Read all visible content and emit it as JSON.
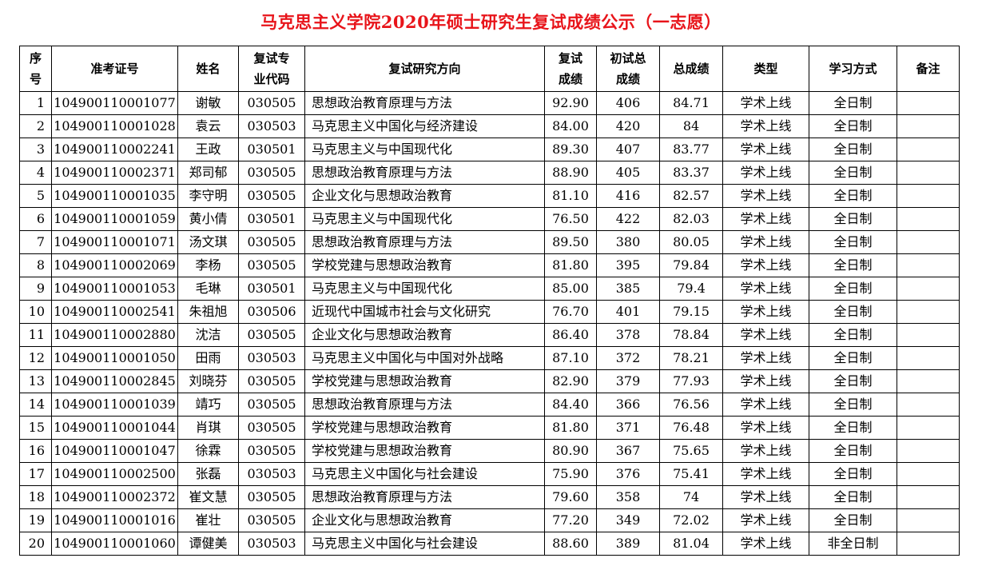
{
  "title": "马克思主义学院2020年硕士研究生复试成绩公示（一志愿）",
  "colors": {
    "title": "#e8141a"
  },
  "headers": [
    "序号",
    "准考证号",
    "姓名",
    "复试专业代码",
    "复试研究方向",
    "复试成绩",
    "初试总成绩",
    "总成绩",
    "类型",
    "学习方式",
    "备注"
  ],
  "rows": [
    [
      "1",
      "104900110001077",
      "谢敏",
      "030505",
      "思想政治教育原理与方法",
      "92.90",
      "406",
      "84.71",
      "学术上线",
      "全日制",
      ""
    ],
    [
      "2",
      "104900110001028",
      "袁云",
      "030503",
      "马克思主义中国化与经济建设",
      "84.00",
      "420",
      "84",
      "学术上线",
      "全日制",
      ""
    ],
    [
      "3",
      "104900110002241",
      "王政",
      "030501",
      "马克思主义与中国现代化",
      "89.30",
      "407",
      "83.77",
      "学术上线",
      "全日制",
      ""
    ],
    [
      "4",
      "104900110002371",
      "郑司郁",
      "030505",
      "思想政治教育原理与方法",
      "88.90",
      "405",
      "83.37",
      "学术上线",
      "全日制",
      ""
    ],
    [
      "5",
      "104900110001035",
      "李守明",
      "030505",
      "企业文化与思想政治教育",
      "81.10",
      "416",
      "82.57",
      "学术上线",
      "全日制",
      ""
    ],
    [
      "6",
      "104900110001059",
      "黄小倩",
      "030501",
      "马克思主义与中国现代化",
      "76.50",
      "422",
      "82.03",
      "学术上线",
      "全日制",
      ""
    ],
    [
      "7",
      "104900110001071",
      "汤文琪",
      "030505",
      "思想政治教育原理与方法",
      "89.50",
      "380",
      "80.05",
      "学术上线",
      "全日制",
      ""
    ],
    [
      "8",
      "104900110002069",
      "李杨",
      "030505",
      "学校党建与思想政治教育",
      "81.80",
      "395",
      "79.84",
      "学术上线",
      "全日制",
      ""
    ],
    [
      "9",
      "104900110001053",
      "毛琳",
      "030501",
      "马克思主义与中国现代化",
      "85.00",
      "385",
      "79.4",
      "学术上线",
      "全日制",
      ""
    ],
    [
      "10",
      "104900110002541",
      "朱祖旭",
      "030506",
      "近现代中国城市社会与文化研究",
      "76.70",
      "401",
      "79.15",
      "学术上线",
      "全日制",
      ""
    ],
    [
      "11",
      "104900110002880",
      "沈洁",
      "030505",
      "企业文化与思想政治教育",
      "86.40",
      "378",
      "78.84",
      "学术上线",
      "全日制",
      ""
    ],
    [
      "12",
      "104900110001050",
      "田雨",
      "030503",
      "马克思主义中国化与中国对外战略",
      "87.10",
      "372",
      "78.21",
      "学术上线",
      "全日制",
      ""
    ],
    [
      "13",
      "104900110002845",
      "刘晓芬",
      "030505",
      "学校党建与思想政治教育",
      "82.90",
      "379",
      "77.93",
      "学术上线",
      "全日制",
      ""
    ],
    [
      "14",
      "104900110001039",
      "靖巧",
      "030505",
      "思想政治教育原理与方法",
      "84.40",
      "366",
      "76.56",
      "学术上线",
      "全日制",
      ""
    ],
    [
      "15",
      "104900110001044",
      "肖琪",
      "030505",
      "学校党建与思想政治教育",
      "81.80",
      "371",
      "76.48",
      "学术上线",
      "全日制",
      ""
    ],
    [
      "16",
      "104900110001047",
      "徐霖",
      "030505",
      "学校党建与思想政治教育",
      "80.90",
      "367",
      "75.65",
      "学术上线",
      "全日制",
      ""
    ],
    [
      "17",
      "104900110002500",
      "张磊",
      "030503",
      "马克思主义中国化与社会建设",
      "75.90",
      "376",
      "75.41",
      "学术上线",
      "全日制",
      ""
    ],
    [
      "18",
      "104900110002372",
      "崔文慧",
      "030505",
      "思想政治教育原理与方法",
      "79.60",
      "358",
      "74",
      "学术上线",
      "全日制",
      ""
    ],
    [
      "19",
      "104900110001016",
      "崔壮",
      "030505",
      "企业文化与思想政治教育",
      "77.20",
      "349",
      "72.02",
      "学术上线",
      "全日制",
      ""
    ],
    [
      "20",
      "104900110001060",
      "谭健美",
      "030503",
      "马克思主义中国化与社会建设",
      "88.60",
      "389",
      "81.04",
      "学术上线",
      "非全日制",
      ""
    ]
  ]
}
